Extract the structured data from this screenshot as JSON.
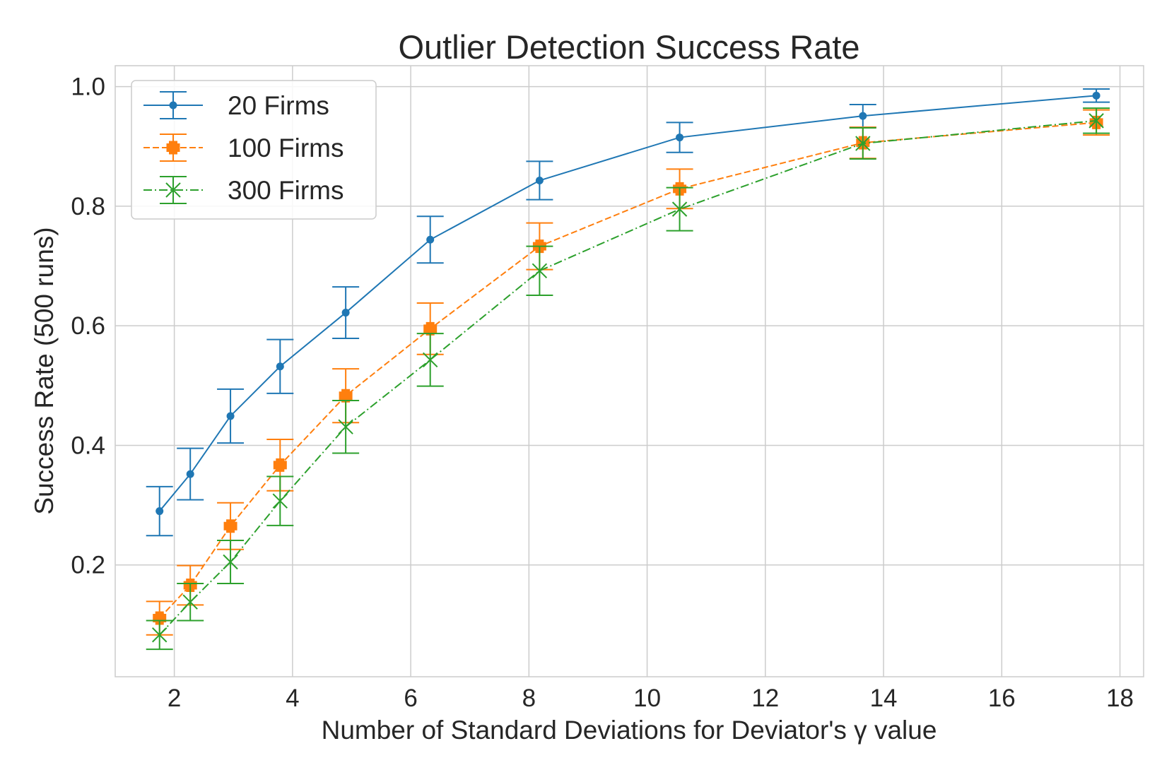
{
  "chart_data": {
    "type": "line",
    "title": "Outlier Detection Success Rate",
    "xlabel": "Number of Standard Deviations for Deviator's γ value",
    "ylabel": "Success Rate (500 runs)",
    "xlim": [
      1,
      18.4
    ],
    "ylim": [
      0.013,
      1.035
    ],
    "xticks": [
      2,
      4,
      6,
      8,
      10,
      12,
      14,
      16,
      18
    ],
    "xtick_labels": [
      "2",
      "4",
      "6",
      "8",
      "10",
      "12",
      "14",
      "16",
      "18"
    ],
    "yticks": [
      0.2,
      0.4,
      0.6,
      0.8,
      1.0
    ],
    "ytick_labels": [
      "0.2",
      "0.4",
      "0.6",
      "0.8",
      "1.0"
    ],
    "grid": true,
    "legend_position": "top-left",
    "series": [
      {
        "name": "20 Firms",
        "color": "#1f77b4",
        "line_style": "solid",
        "marker": "dot",
        "x": [
          1.75,
          2.27,
          2.95,
          3.79,
          4.9,
          6.33,
          8.18,
          10.55,
          13.65,
          17.6
        ],
        "y": [
          0.29,
          0.352,
          0.449,
          0.532,
          0.622,
          0.744,
          0.843,
          0.915,
          0.951,
          0.985
        ],
        "err": [
          0.041,
          0.043,
          0.045,
          0.045,
          0.043,
          0.039,
          0.032,
          0.025,
          0.019,
          0.011
        ]
      },
      {
        "name": "100 Firms",
        "color": "#ff7f0e",
        "line_style": "dashed",
        "marker": "plus",
        "x": [
          1.75,
          2.27,
          2.95,
          3.79,
          4.9,
          6.33,
          8.18,
          10.55,
          13.65,
          17.6
        ],
        "y": [
          0.111,
          0.166,
          0.265,
          0.367,
          0.483,
          0.595,
          0.733,
          0.829,
          0.906,
          0.94
        ],
        "err": [
          0.028,
          0.033,
          0.039,
          0.043,
          0.045,
          0.043,
          0.039,
          0.033,
          0.026,
          0.021
        ]
      },
      {
        "name": "300 Firms",
        "color": "#2ca02c",
        "line_style": "dashdot",
        "marker": "x",
        "x": [
          1.75,
          2.27,
          2.95,
          3.79,
          4.9,
          6.33,
          8.18,
          10.55,
          13.65,
          17.6
        ],
        "y": [
          0.083,
          0.138,
          0.205,
          0.307,
          0.431,
          0.543,
          0.692,
          0.795,
          0.905,
          0.943
        ],
        "err": [
          0.024,
          0.031,
          0.036,
          0.041,
          0.044,
          0.044,
          0.041,
          0.036,
          0.026,
          0.021
        ]
      }
    ]
  }
}
